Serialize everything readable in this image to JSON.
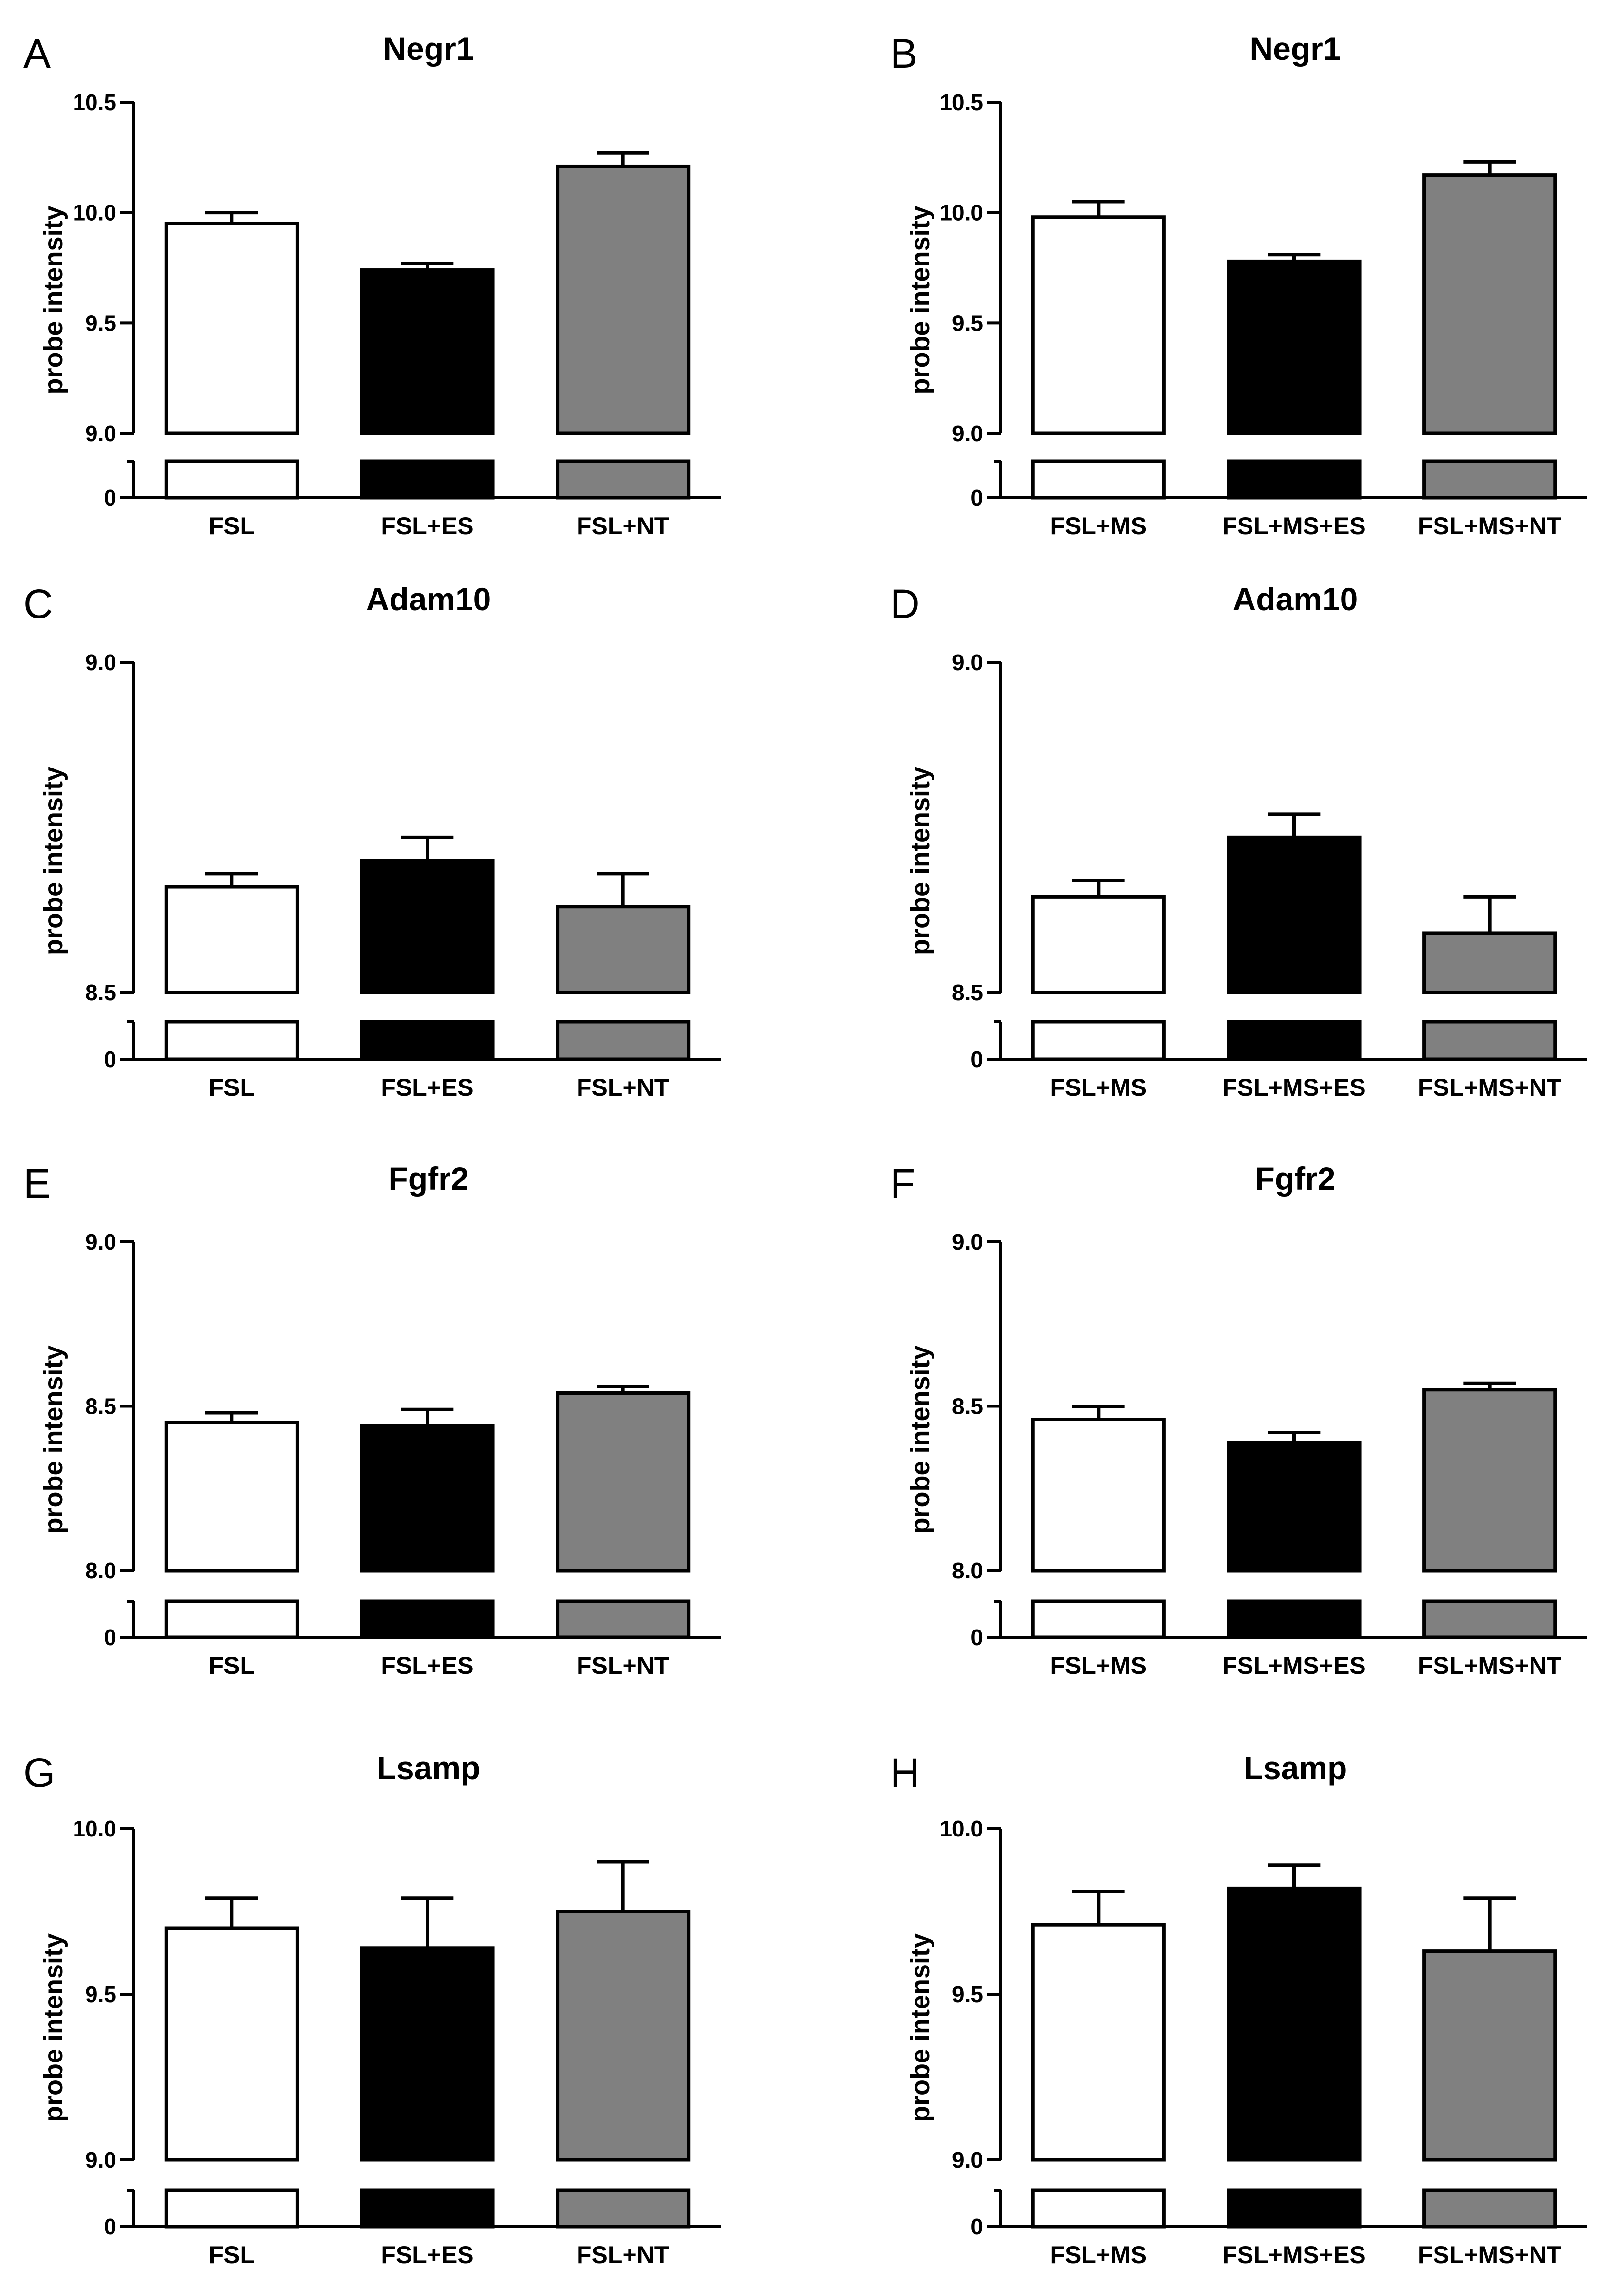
{
  "chart_data": [
    {
      "panel": "A",
      "type": "bar",
      "title": "Negr1",
      "ylabel": "probe intensity",
      "ylim": [
        9.0,
        10.5
      ],
      "yticks": [
        "9.0",
        "9.5",
        "10.0",
        "10.5"
      ],
      "break_zero": "0",
      "categories": [
        "FSL",
        "FSL+ES",
        "FSL+NT"
      ],
      "values": [
        9.95,
        9.74,
        10.21
      ],
      "errors": [
        0.05,
        0.03,
        0.06
      ],
      "colors": [
        "#ffffff",
        "#000000",
        "#808080"
      ]
    },
    {
      "panel": "B",
      "type": "bar",
      "title": "Negr1",
      "ylabel": "probe intensity",
      "ylim": [
        9.0,
        10.5
      ],
      "yticks": [
        "9.0",
        "9.5",
        "10.0",
        "10.5"
      ],
      "break_zero": "0",
      "categories": [
        "FSL+MS",
        "FSL+MS+ES",
        "FSL+MS+NT"
      ],
      "values": [
        9.98,
        9.78,
        10.17
      ],
      "errors": [
        0.07,
        0.03,
        0.06
      ],
      "colors": [
        "#ffffff",
        "#000000",
        "#808080"
      ]
    },
    {
      "panel": "C",
      "type": "bar",
      "title": "Adam10",
      "ylabel": "probe intensity",
      "ylim": [
        8.5,
        9.0
      ],
      "yticks": [
        "8.5",
        "9.0"
      ],
      "break_zero": "0",
      "categories": [
        "FSL",
        "FSL+ES",
        "FSL+NT"
      ],
      "values": [
        8.66,
        8.7,
        8.63
      ],
      "errors": [
        0.02,
        0.035,
        0.05
      ],
      "colors": [
        "#ffffff",
        "#000000",
        "#808080"
      ]
    },
    {
      "panel": "D",
      "type": "bar",
      "title": "Adam10",
      "ylabel": "probe intensity",
      "ylim": [
        8.5,
        9.0
      ],
      "yticks": [
        "8.5",
        "9.0"
      ],
      "break_zero": "0",
      "categories": [
        "FSL+MS",
        "FSL+MS+ES",
        "FSL+MS+NT"
      ],
      "values": [
        8.645,
        8.735,
        8.59
      ],
      "errors": [
        0.025,
        0.035,
        0.055
      ],
      "colors": [
        "#ffffff",
        "#000000",
        "#808080"
      ]
    },
    {
      "panel": "E",
      "type": "bar",
      "title": "Fgfr2",
      "ylabel": "probe intensity",
      "ylim": [
        8.0,
        9.0
      ],
      "yticks": [
        "8.0",
        "8.5",
        "9.0"
      ],
      "break_zero": "0",
      "categories": [
        "FSL",
        "FSL+ES",
        "FSL+NT"
      ],
      "values": [
        8.45,
        8.44,
        8.54
      ],
      "errors": [
        0.03,
        0.05,
        0.02
      ],
      "colors": [
        "#ffffff",
        "#000000",
        "#808080"
      ]
    },
    {
      "panel": "F",
      "type": "bar",
      "title": "Fgfr2",
      "ylabel": "probe intensity",
      "ylim": [
        8.0,
        9.0
      ],
      "yticks": [
        "8.0",
        "8.5",
        "9.0"
      ],
      "break_zero": "0",
      "categories": [
        "FSL+MS",
        "FSL+MS+ES",
        "FSL+MS+NT"
      ],
      "values": [
        8.46,
        8.39,
        8.55
      ],
      "errors": [
        0.04,
        0.03,
        0.02
      ],
      "colors": [
        "#ffffff",
        "#000000",
        "#808080"
      ]
    },
    {
      "panel": "G",
      "type": "bar",
      "title": "Lsamp",
      "ylabel": "probe intensity",
      "ylim": [
        9.0,
        10.0
      ],
      "yticks": [
        "9.0",
        "9.5",
        "10.0"
      ],
      "break_zero": "0",
      "categories": [
        "FSL",
        "FSL+ES",
        "FSL+NT"
      ],
      "values": [
        9.7,
        9.64,
        9.75
      ],
      "errors": [
        0.09,
        0.15,
        0.15
      ],
      "colors": [
        "#ffffff",
        "#000000",
        "#808080"
      ]
    },
    {
      "panel": "H",
      "type": "bar",
      "title": "Lsamp",
      "ylabel": "probe intensity",
      "ylim": [
        9.0,
        10.0
      ],
      "yticks": [
        "9.0",
        "9.5",
        "10.0"
      ],
      "break_zero": "0",
      "categories": [
        "FSL+MS",
        "FSL+MS+ES",
        "FSL+MS+NT"
      ],
      "values": [
        9.71,
        9.82,
        9.63
      ],
      "errors": [
        0.1,
        0.07,
        0.16
      ],
      "colors": [
        "#ffffff",
        "#000000",
        "#808080"
      ]
    }
  ]
}
